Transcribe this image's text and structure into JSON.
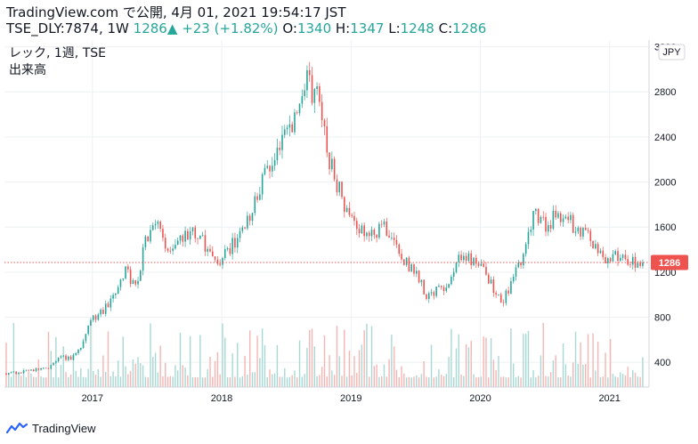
{
  "header": {
    "line1": "TradingView.com で公開, 4月 01, 2021 19:54:17 JST",
    "symbol": "TSE_DLY:7874, 1W",
    "last": "1286",
    "change": "+23 (+1.82%)",
    "o_label": "O:",
    "o_val": "1340",
    "h_label": "H:",
    "h_val": "1347",
    "l_label": "L:",
    "l_val": "1248",
    "c_label": "C:",
    "c_val": "1286"
  },
  "legend": {
    "title": "レック, 1週, TSE",
    "volume": "出来高"
  },
  "currency": "JPY",
  "price_tag": "1286",
  "footer": {
    "brand": "TradingView"
  },
  "colors": {
    "up": "#26a69a",
    "down": "#ef5350",
    "vol_up": "#a8d8d3",
    "vol_down": "#f5b5b3",
    "grid": "#eef0f3",
    "text": "#131722"
  },
  "chart_data": {
    "type": "candlestick",
    "title": "レック, 1週, TSE",
    "x_ticks": [
      "2017",
      "2018",
      "2019",
      "2020",
      "2021"
    ],
    "y_ticks": [
      400,
      800,
      1200,
      1600,
      2000,
      2400,
      2800,
      3200
    ],
    "ylim": [
      180,
      3260
    ],
    "last_price": 1286,
    "series": [
      {
        "date": "2016-05",
        "price": 300
      },
      {
        "date": "2016-07",
        "price": 320
      },
      {
        "date": "2016-09",
        "price": 350
      },
      {
        "date": "2016-10",
        "price": 450
      },
      {
        "date": "2016-11",
        "price": 430
      },
      {
        "date": "2016-12",
        "price": 560
      },
      {
        "date": "2017-01",
        "price": 780
      },
      {
        "date": "2017-02",
        "price": 860
      },
      {
        "date": "2017-03",
        "price": 1000
      },
      {
        "date": "2017-04",
        "price": 1230
      },
      {
        "date": "2017-05",
        "price": 1050
      },
      {
        "date": "2017-06",
        "price": 1500
      },
      {
        "date": "2017-07",
        "price": 1600
      },
      {
        "date": "2017-08",
        "price": 1400
      },
      {
        "date": "2017-09",
        "price": 1500
      },
      {
        "date": "2017-10",
        "price": 1550
      },
      {
        "date": "2017-11",
        "price": 1500
      },
      {
        "date": "2017-12",
        "price": 1350
      },
      {
        "date": "2018-01",
        "price": 1300
      },
      {
        "date": "2018-02",
        "price": 1450
      },
      {
        "date": "2018-03",
        "price": 1600
      },
      {
        "date": "2018-04",
        "price": 1800
      },
      {
        "date": "2018-05",
        "price": 2100
      },
      {
        "date": "2018-06",
        "price": 2300
      },
      {
        "date": "2018-07",
        "price": 2500
      },
      {
        "date": "2018-08",
        "price": 2600
      },
      {
        "date": "2018-09",
        "price": 2900
      },
      {
        "date": "2018-10",
        "price": 2700
      },
      {
        "date": "2018-11",
        "price": 2200
      },
      {
        "date": "2018-12",
        "price": 1900
      },
      {
        "date": "2019-01",
        "price": 1650
      },
      {
        "date": "2019-02",
        "price": 1600
      },
      {
        "date": "2019-03",
        "price": 1550
      },
      {
        "date": "2019-04",
        "price": 1600
      },
      {
        "date": "2019-05",
        "price": 1500
      },
      {
        "date": "2019-06",
        "price": 1300
      },
      {
        "date": "2019-07",
        "price": 1200
      },
      {
        "date": "2019-08",
        "price": 1000
      },
      {
        "date": "2019-09",
        "price": 1050
      },
      {
        "date": "2019-10",
        "price": 1050
      },
      {
        "date": "2019-11",
        "price": 1300
      },
      {
        "date": "2019-12",
        "price": 1320
      },
      {
        "date": "2020-01",
        "price": 1250
      },
      {
        "date": "2020-02",
        "price": 1100
      },
      {
        "date": "2020-03",
        "price": 900
      },
      {
        "date": "2020-04",
        "price": 1150
      },
      {
        "date": "2020-05",
        "price": 1350
      },
      {
        "date": "2020-06",
        "price": 1750
      },
      {
        "date": "2020-07",
        "price": 1600
      },
      {
        "date": "2020-08",
        "price": 1700
      },
      {
        "date": "2020-09",
        "price": 1700
      },
      {
        "date": "2020-10",
        "price": 1550
      },
      {
        "date": "2020-11",
        "price": 1550
      },
      {
        "date": "2020-12",
        "price": 1350
      },
      {
        "date": "2021-01",
        "price": 1300
      },
      {
        "date": "2021-02",
        "price": 1350
      },
      {
        "date": "2021-03",
        "price": 1286
      }
    ]
  }
}
